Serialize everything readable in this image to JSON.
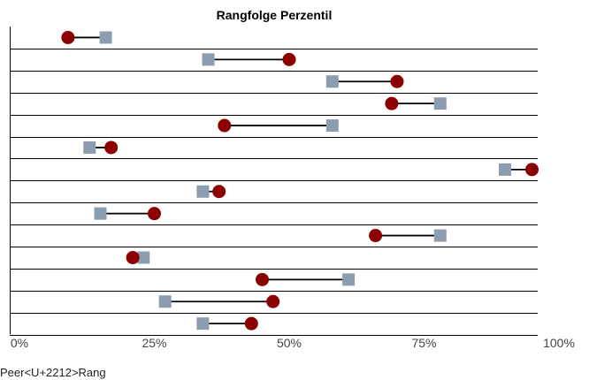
{
  "chart_data": {
    "type": "dumbbell",
    "title": "Rangfolge Perzentil",
    "xlim": [
      0,
      100
    ],
    "x_ticks": [
      "0%",
      "25%",
      "50%",
      "75%",
      "100%"
    ],
    "legend_label": "Peer<U+2212>Rang",
    "series": [
      {
        "marker": "square",
        "color": "#8c9db0",
        "values": [
          16,
          35,
          58,
          78,
          58,
          13,
          90,
          34,
          15,
          78,
          23,
          61,
          27,
          34
        ]
      },
      {
        "marker": "circle",
        "color": "#8b0000",
        "values": [
          9,
          50,
          70,
          69,
          38,
          17,
          95,
          37,
          25,
          66,
          21,
          45,
          47,
          43
        ]
      }
    ],
    "grid": "horizontal",
    "connector_color": "#000000"
  }
}
